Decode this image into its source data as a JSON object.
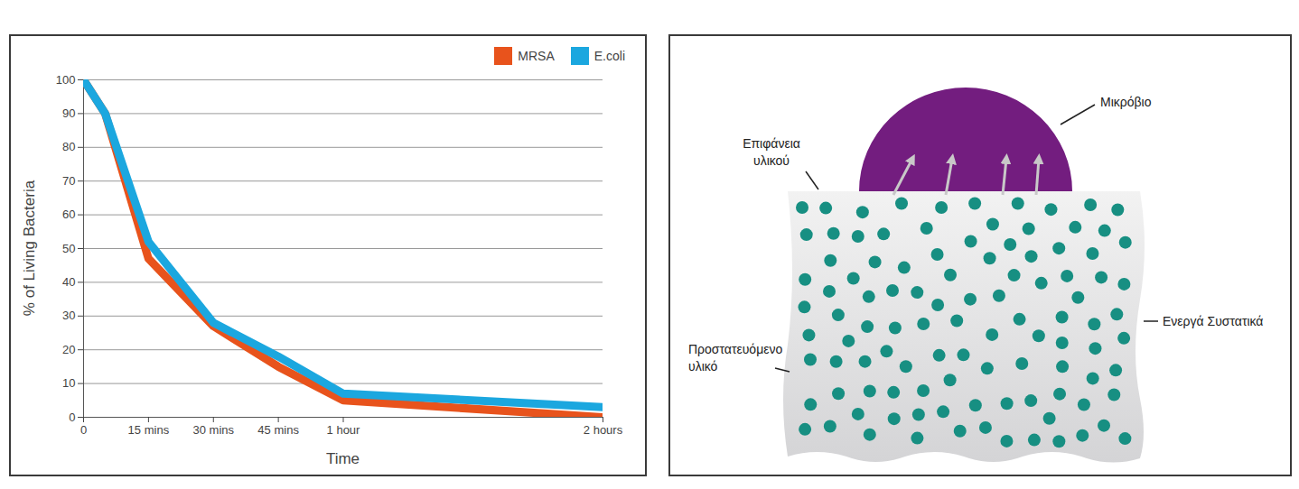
{
  "chart_data": {
    "type": "line",
    "x_label": "Time",
    "y_label": "% of Living Bacteria",
    "x": [
      0,
      5,
      15,
      30,
      45,
      60,
      120
    ],
    "series": [
      {
        "name": "MRSA",
        "color": "#e8531c",
        "values": [
          100,
          90,
          47,
          27,
          15,
          5,
          0
        ]
      },
      {
        "name": "E.coli",
        "color": "#1ba7df",
        "values": [
          100,
          90,
          52,
          28,
          18,
          7,
          3
        ]
      }
    ],
    "xlim": [
      0,
      120
    ],
    "xticks": [
      0,
      {
        "value": 15,
        "label": "15 mins"
      },
      {
        "value": 30,
        "label": "30 mins"
      },
      {
        "value": 45,
        "label": "45 mins"
      },
      {
        "value": 60,
        "label": "1 hour"
      },
      {
        "value": 120,
        "label": "2 hours"
      }
    ],
    "ylim": [
      0,
      100
    ],
    "yticks": [
      0,
      10,
      20,
      30,
      40,
      50,
      60,
      70,
      80,
      90,
      100
    ],
    "grid": true,
    "legend": "top-right"
  },
  "diagram": {
    "microbe": "Μικρόβιο",
    "surface": [
      "Επιφάνεια",
      "υλικού"
    ],
    "active_ingredients": "Ενεργά Συστατικά",
    "protected_material": [
      "Προστατευόμενο",
      "υλικό"
    ]
  }
}
